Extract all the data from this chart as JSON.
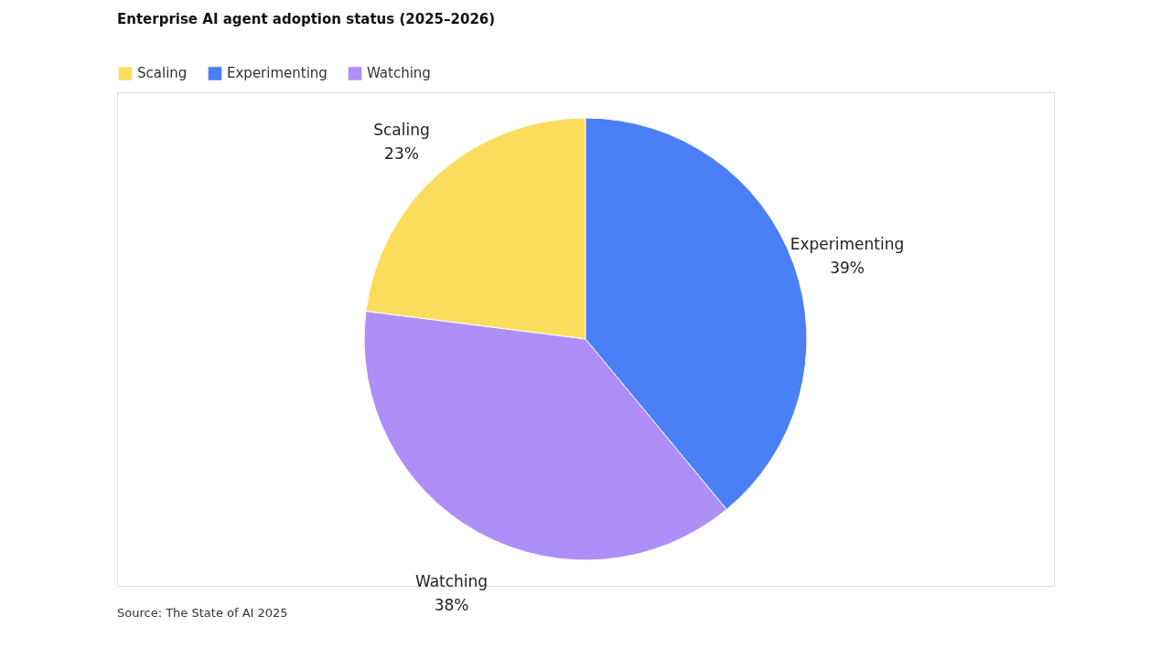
{
  "chart_data": {
    "type": "pie",
    "title": "Enterprise AI agent adoption status (2025–2026)",
    "categories": [
      "Scaling",
      "Experimenting",
      "Watching"
    ],
    "values": [
      23,
      39,
      38
    ],
    "value_labels": [
      "23%",
      "39%",
      "38%"
    ],
    "colors": [
      "#fcdc5c",
      "#4a7ff5",
      "#ae8ff7"
    ],
    "legend": "top left",
    "annotations": [
      "Source: The State of AI 2025"
    ]
  }
}
